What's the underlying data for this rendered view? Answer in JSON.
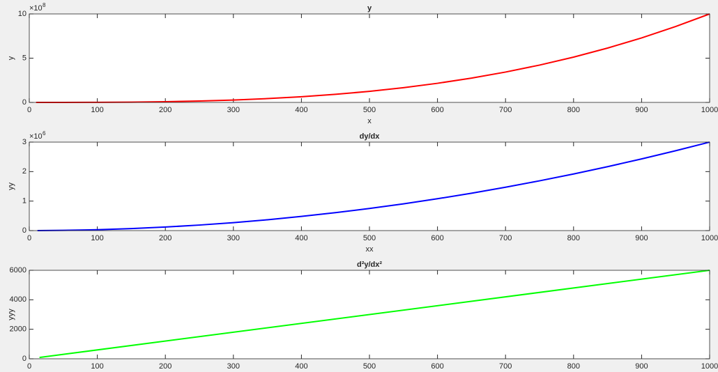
{
  "chart_data": [
    {
      "type": "line",
      "title": "y",
      "xlabel": "x",
      "ylabel": "y",
      "y_multiplier": "×10",
      "y_exponent": "8",
      "x": [
        10,
        50,
        100,
        150,
        200,
        250,
        300,
        350,
        400,
        450,
        500,
        550,
        600,
        650,
        700,
        750,
        800,
        850,
        900,
        950,
        1000
      ],
      "series": [
        {
          "color": "#ff0000",
          "values": [
            1e-05,
            0.00125,
            0.01,
            0.03375,
            0.08,
            0.15625,
            0.27,
            0.42875,
            0.64,
            0.91125,
            1.25,
            1.66375,
            2.16,
            2.74625,
            3.43,
            4.21875,
            5.12,
            6.14125,
            7.29,
            8.57375,
            10
          ]
        }
      ],
      "xlim": [
        0,
        1000
      ],
      "xticks": [
        0,
        100,
        200,
        300,
        400,
        500,
        600,
        700,
        800,
        900,
        1000
      ],
      "ylim": [
        0,
        10
      ],
      "yticks": [
        0,
        5,
        10
      ],
      "grid": false
    },
    {
      "type": "line",
      "title": "dy/dx",
      "xlabel": "xx",
      "ylabel": "yy",
      "y_multiplier": "×10",
      "y_exponent": "6",
      "x": [
        12,
        50,
        100,
        150,
        200,
        250,
        300,
        350,
        400,
        450,
        500,
        550,
        600,
        650,
        700,
        750,
        800,
        850,
        900,
        950,
        1000
      ],
      "series": [
        {
          "color": "#0000ff",
          "values": [
            0.000432,
            0.0075,
            0.03,
            0.0675,
            0.12,
            0.1875,
            0.27,
            0.3675,
            0.48,
            0.6075,
            0.75,
            0.9075,
            1.08,
            1.2675,
            1.47,
            1.6875,
            1.92,
            2.1675,
            2.43,
            2.7075,
            3
          ]
        }
      ],
      "xlim": [
        0,
        1000
      ],
      "xticks": [
        0,
        100,
        200,
        300,
        400,
        500,
        600,
        700,
        800,
        900,
        1000
      ],
      "ylim": [
        0,
        3
      ],
      "yticks": [
        0,
        1,
        2,
        3
      ],
      "grid": false
    },
    {
      "type": "line",
      "title": "d²y/dx²",
      "ylabel": "yyy",
      "x": [
        15,
        1000
      ],
      "series": [
        {
          "color": "#00ff00",
          "values": [
            90,
            6000
          ]
        }
      ],
      "xlim": [
        0,
        1000
      ],
      "xticks": [
        0,
        100,
        200,
        300,
        400,
        500,
        600,
        700,
        800,
        900,
        1000
      ],
      "ylim": [
        0,
        6000
      ],
      "yticks": [
        0,
        2000,
        4000,
        6000
      ],
      "grid": false
    }
  ]
}
